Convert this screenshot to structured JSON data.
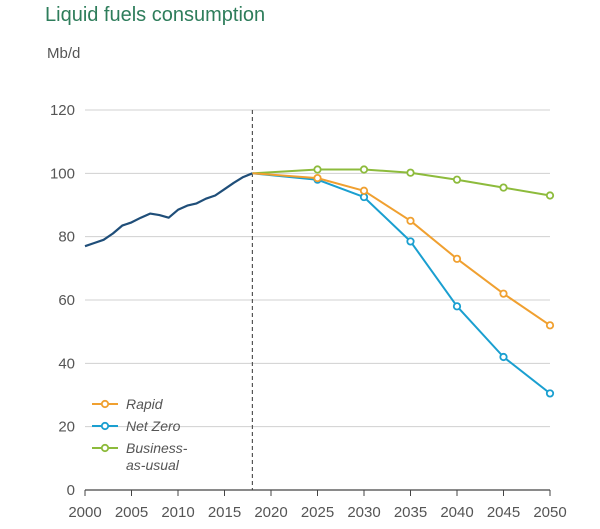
{
  "chart_data": {
    "type": "line",
    "title": "Liquid fuels consumption",
    "ylabel": "Mb/d",
    "xlabel": "",
    "xlim": [
      2000,
      2050
    ],
    "ylim": [
      0,
      120
    ],
    "yticks": [
      0,
      20,
      40,
      60,
      80,
      100,
      120
    ],
    "xticks": [
      2000,
      2005,
      2010,
      2015,
      2020,
      2025,
      2030,
      2035,
      2040,
      2045,
      2050
    ],
    "grid": true,
    "divider_year": 2018,
    "legend_position": "bottom-left",
    "history": {
      "color": "#1f4e79",
      "x": [
        2000,
        2001,
        2002,
        2003,
        2004,
        2005,
        2006,
        2007,
        2008,
        2009,
        2010,
        2011,
        2012,
        2013,
        2014,
        2015,
        2016,
        2017,
        2018
      ],
      "values": [
        77,
        78,
        79,
        81,
        83.5,
        84.5,
        86,
        87.3,
        86.8,
        86,
        88.5,
        89.8,
        90.5,
        92,
        93,
        95,
        97,
        98.8,
        100
      ]
    },
    "series": [
      {
        "name": "Rapid",
        "color": "#f0a030",
        "x": [
          2018,
          2025,
          2030,
          2035,
          2040,
          2045,
          2050
        ],
        "values": [
          100,
          98.5,
          94.5,
          85,
          73,
          62,
          52
        ]
      },
      {
        "name": "Net Zero",
        "color": "#1a9fd0",
        "x": [
          2018,
          2025,
          2030,
          2035,
          2040,
          2045,
          2050
        ],
        "values": [
          100,
          98,
          92.5,
          78.5,
          58,
          42,
          30.5
        ]
      },
      {
        "name": "Business-\nas-usual",
        "color": "#8dbb3c",
        "x": [
          2018,
          2025,
          2030,
          2035,
          2040,
          2045,
          2050
        ],
        "values": [
          100,
          101.2,
          101.2,
          100.2,
          98,
          95.5,
          93
        ]
      }
    ]
  }
}
